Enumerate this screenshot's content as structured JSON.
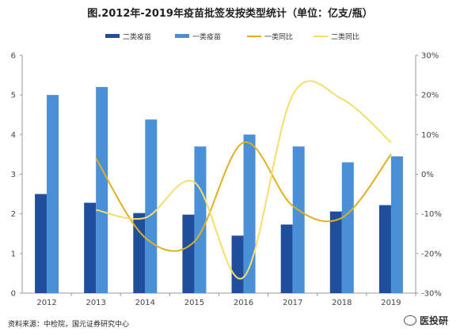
{
  "title": "图.2012年-2019年疫苗批签发按类型统计（单位：亿支/瓶）",
  "source": "资料来源：中检院，国元证券研究中心",
  "watermark": "医投研",
  "chart_data": {
    "type": "bar",
    "categories": [
      "2012",
      "2013",
      "2014",
      "2015",
      "2016",
      "2017",
      "2018",
      "2019"
    ],
    "ylim": [
      0,
      6
    ],
    "y_ticks": [
      "0",
      "1",
      "2",
      "3",
      "4",
      "5",
      "6"
    ],
    "y2lim": [
      -30,
      30
    ],
    "y2_ticks": [
      "-30%",
      "-20%",
      "-10%",
      "0%",
      "10%",
      "20%",
      "30%"
    ],
    "grid": false,
    "legend_position": "top",
    "series": [
      {
        "name": "二类疫苗",
        "type": "bar",
        "axis": "left",
        "color": "#1f4e9c",
        "values": [
          2.5,
          2.28,
          2.02,
          1.98,
          1.45,
          1.73,
          2.06,
          2.22
        ]
      },
      {
        "name": "一类疫苗",
        "type": "bar",
        "axis": "left",
        "color": "#4a90d9",
        "values": [
          5.0,
          5.2,
          4.38,
          3.7,
          4.0,
          3.7,
          3.3,
          3.45
        ]
      },
      {
        "name": "一类同比",
        "type": "line",
        "axis": "right",
        "color": "#e0b020",
        "values": [
          null,
          4,
          -16,
          -17,
          8,
          -8,
          -11,
          5
        ]
      },
      {
        "name": "二类同比",
        "type": "line",
        "axis": "right",
        "color": "#f5de6a",
        "values": [
          null,
          -9,
          -11,
          -2,
          -26,
          20,
          19,
          8
        ]
      }
    ]
  }
}
